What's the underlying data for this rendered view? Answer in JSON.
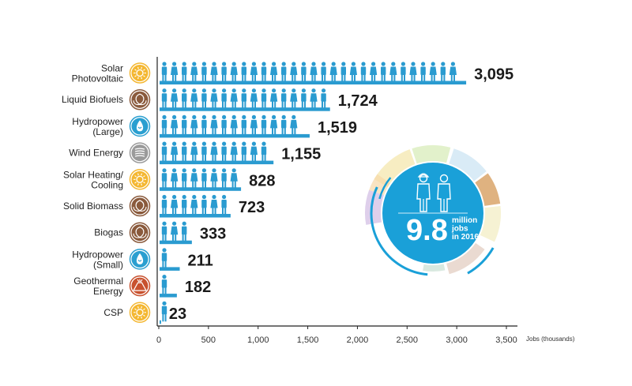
{
  "chart_data": {
    "type": "bar",
    "orientation": "horizontal",
    "categories": [
      [
        "Solar",
        "Photovoltaic"
      ],
      [
        "Liquid Biofuels"
      ],
      [
        "Hydropower",
        "(Large)"
      ],
      [
        "Wind Energy"
      ],
      [
        "Solar Heating/",
        "Cooling"
      ],
      [
        "Solid Biomass"
      ],
      [
        "Biogas"
      ],
      [
        "Hydropower",
        "(Small)"
      ],
      [
        "Geothermal",
        "Energy"
      ],
      [
        "CSP"
      ]
    ],
    "values": [
      3095,
      1724,
      1519,
      1155,
      828,
      723,
      333,
      211,
      182,
      23
    ],
    "value_labels": [
      "3,095",
      "1,724",
      "1,519",
      "1,155",
      "828",
      "723",
      "333",
      "211",
      "182",
      "23"
    ],
    "icons": [
      "sun-icon",
      "leaf-icon",
      "water-drop-icon",
      "wind-icon",
      "sun-icon",
      "leaf-icon",
      "leaf-icon",
      "water-drop-icon",
      "volcano-icon",
      "sun-icon"
    ],
    "icon_colors": [
      "#f4b731",
      "#8a5a3c",
      "#2a9fd0",
      "#9a9a9a",
      "#f4b731",
      "#8a5a3c",
      "#8a5a3c",
      "#2a9fd0",
      "#c8512e",
      "#f4b731"
    ],
    "xlim": [
      0,
      3500
    ],
    "xticks": [
      0,
      500,
      1000,
      1500,
      2000,
      2500,
      3000,
      3500
    ],
    "xtick_labels": [
      "0",
      "500",
      "1,000",
      "1,500",
      "2,000",
      "2,500",
      "3,000",
      "3,500"
    ],
    "xlabel": "Jobs (thousands)",
    "bar_color": "#2a9bd0",
    "callout": {
      "big": "9.8",
      "lines": [
        "million",
        "jobs",
        "in 2016"
      ],
      "color": "#1aa0d8"
    }
  }
}
